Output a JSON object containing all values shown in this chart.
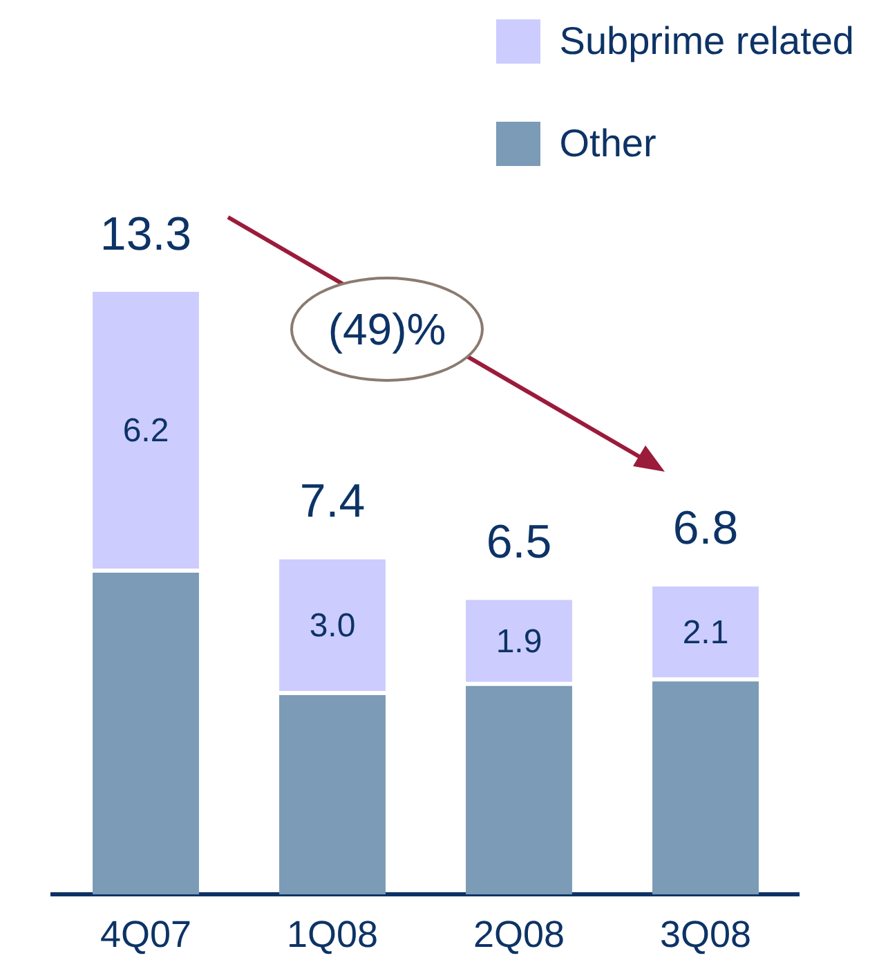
{
  "chart_data": {
    "type": "bar",
    "stacked": true,
    "categories": [
      "4Q07",
      "1Q08",
      "2Q08",
      "3Q08"
    ],
    "series": [
      {
        "name": "Other",
        "color": "#7b9bb6",
        "values": [
          7.1,
          4.4,
          4.6,
          4.7
        ]
      },
      {
        "name": "Subprime related",
        "color": "#ccccff",
        "values": [
          6.2,
          3.0,
          1.9,
          2.1
        ],
        "value_labels": [
          "6.2",
          "3.0",
          "1.9",
          "2.1"
        ]
      }
    ],
    "totals": [
      "13.3",
      "7.4",
      "6.5",
      "6.8"
    ],
    "legend": "top right",
    "grid": false,
    "annotations": [
      "(49)%"
    ]
  }
}
